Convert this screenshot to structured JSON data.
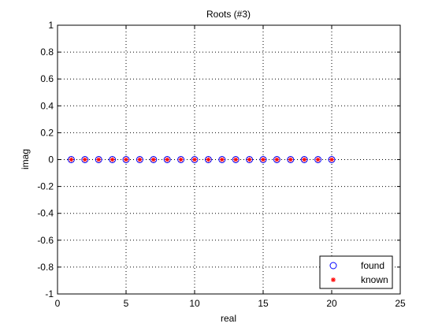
{
  "chart_data": {
    "type": "scatter",
    "title": "Roots (#3)",
    "xlabel": "real",
    "ylabel": "imag",
    "xlim": [
      0,
      25
    ],
    "ylim": [
      -1,
      1
    ],
    "xticks": [
      0,
      5,
      10,
      15,
      20,
      25
    ],
    "yticks": [
      -1,
      -0.8,
      -0.6,
      -0.4,
      -0.2,
      0,
      0.2,
      0.4,
      0.6,
      0.8,
      1
    ],
    "xtick_labels": [
      "0",
      "5",
      "10",
      "15",
      "20",
      "25"
    ],
    "ytick_labels": [
      "-1",
      "-0.8",
      "-0.6",
      "-0.4",
      "-0.2",
      "0",
      "0.2",
      "0.4",
      "0.6",
      "0.8",
      "1"
    ],
    "grid": true,
    "grid_style": "dotted",
    "legend_position": "bottom-right",
    "series": [
      {
        "name": "found",
        "marker": "circle",
        "color": "#0000ff",
        "x": [
          1,
          2,
          3,
          4,
          5,
          6,
          7,
          8,
          9,
          10,
          11,
          12,
          13,
          14,
          15,
          16,
          17,
          18,
          19,
          20
        ],
        "y": [
          0,
          0,
          0,
          0,
          0,
          0,
          0,
          0,
          0,
          0,
          0,
          0,
          0,
          0,
          0,
          0,
          0,
          0,
          0,
          0
        ]
      },
      {
        "name": "known",
        "marker": "asterisk",
        "color": "#ff0000",
        "x": [
          1,
          2,
          3,
          4,
          5,
          6,
          7,
          8,
          9,
          10,
          11,
          12,
          13,
          14,
          15,
          16,
          17,
          18,
          19,
          20
        ],
        "y": [
          0,
          0,
          0,
          0,
          0,
          0,
          0,
          0,
          0,
          0,
          0,
          0,
          0,
          0,
          0,
          0,
          0,
          0,
          0,
          0
        ]
      }
    ]
  }
}
